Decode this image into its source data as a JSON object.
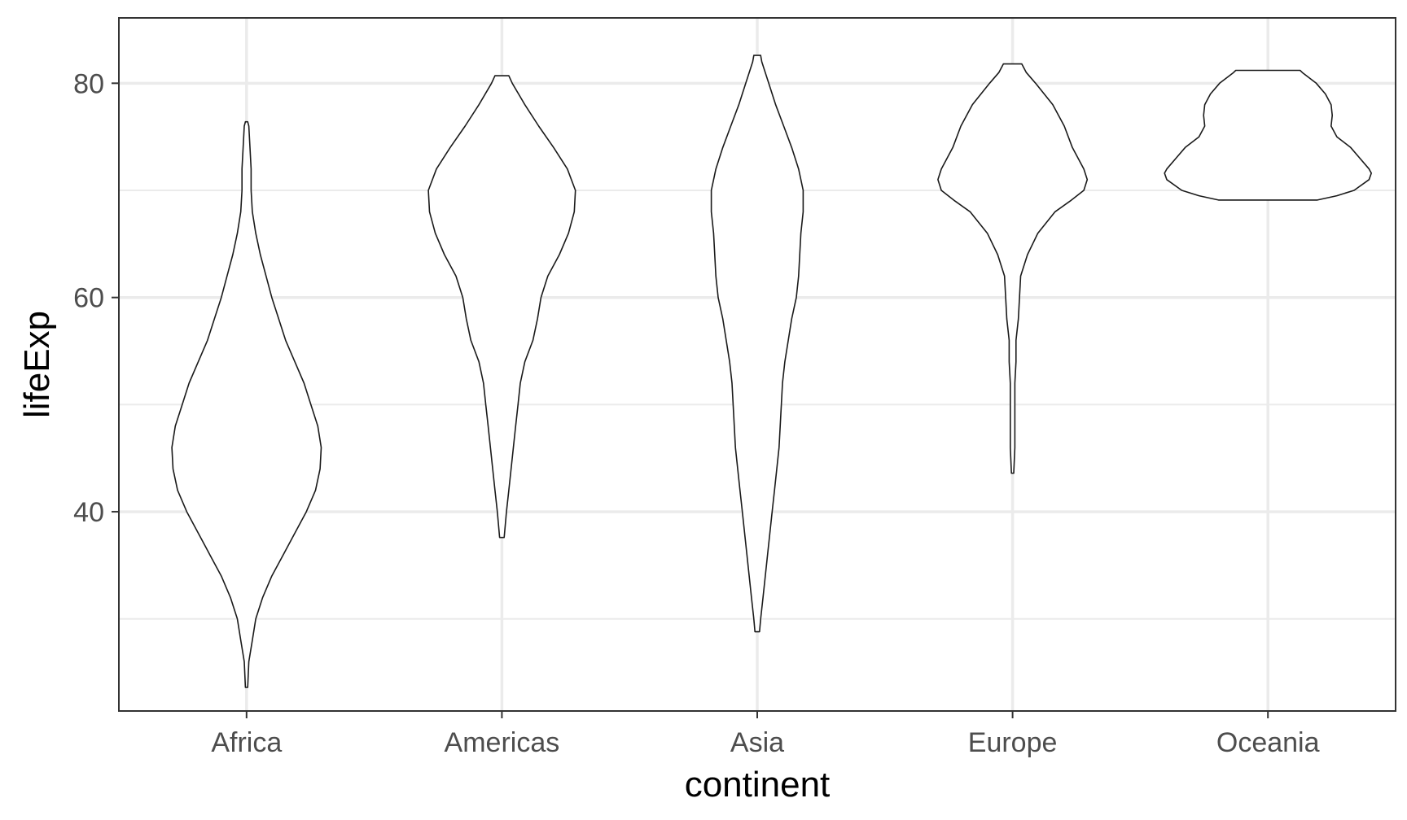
{
  "chart_data": {
    "type": "violin",
    "xlabel": "continent",
    "ylabel": "lifeExp",
    "ylim": [
      21.4,
      86.1
    ],
    "yticks": [
      40,
      60,
      80
    ],
    "y_minor_gridlines": [
      30,
      50,
      70
    ],
    "categories": [
      "Africa",
      "Americas",
      "Asia",
      "Europe",
      "Oceania"
    ],
    "grid": true,
    "colors": {
      "outline": "#1a1a1a",
      "fill": "#ffffff",
      "grid": "#ebebeb",
      "panel_border": "#333333",
      "tick_text": "#4d4d4d"
    },
    "violins": [
      {
        "category": "Africa",
        "min": 23.6,
        "max": 76.4,
        "profile": [
          [
            23.6,
            0.01
          ],
          [
            26,
            0.02
          ],
          [
            28,
            0.05
          ],
          [
            30,
            0.08
          ],
          [
            32,
            0.14
          ],
          [
            34,
            0.22
          ],
          [
            36,
            0.32
          ],
          [
            38,
            0.42
          ],
          [
            40,
            0.52
          ],
          [
            42,
            0.6
          ],
          [
            44,
            0.64
          ],
          [
            46,
            0.65
          ],
          [
            48,
            0.62
          ],
          [
            50,
            0.56
          ],
          [
            52,
            0.5
          ],
          [
            54,
            0.42
          ],
          [
            56,
            0.34
          ],
          [
            58,
            0.28
          ],
          [
            60,
            0.22
          ],
          [
            62,
            0.17
          ],
          [
            64,
            0.12
          ],
          [
            66,
            0.08
          ],
          [
            68,
            0.05
          ],
          [
            70,
            0.04
          ],
          [
            72,
            0.04
          ],
          [
            74,
            0.03
          ],
          [
            76,
            0.02
          ],
          [
            76.4,
            0.01
          ]
        ]
      },
      {
        "category": "Americas",
        "min": 37.6,
        "max": 80.7,
        "profile": [
          [
            37.6,
            0.02
          ],
          [
            40,
            0.04
          ],
          [
            42,
            0.06
          ],
          [
            44,
            0.08
          ],
          [
            46,
            0.1
          ],
          [
            48,
            0.12
          ],
          [
            50,
            0.14
          ],
          [
            52,
            0.16
          ],
          [
            54,
            0.2
          ],
          [
            56,
            0.27
          ],
          [
            58,
            0.31
          ],
          [
            60,
            0.34
          ],
          [
            62,
            0.4
          ],
          [
            64,
            0.5
          ],
          [
            66,
            0.58
          ],
          [
            68,
            0.63
          ],
          [
            70,
            0.64
          ],
          [
            72,
            0.57
          ],
          [
            74,
            0.45
          ],
          [
            76,
            0.32
          ],
          [
            78,
            0.2
          ],
          [
            80,
            0.09
          ],
          [
            80.7,
            0.06
          ]
        ]
      },
      {
        "category": "Asia",
        "min": 28.8,
        "max": 82.6,
        "profile": [
          [
            28.8,
            0.02
          ],
          [
            30,
            0.03
          ],
          [
            32,
            0.05
          ],
          [
            34,
            0.07
          ],
          [
            36,
            0.09
          ],
          [
            38,
            0.11
          ],
          [
            40,
            0.13
          ],
          [
            42,
            0.15
          ],
          [
            44,
            0.17
          ],
          [
            46,
            0.19
          ],
          [
            48,
            0.2
          ],
          [
            50,
            0.21
          ],
          [
            52,
            0.22
          ],
          [
            54,
            0.24
          ],
          [
            56,
            0.27
          ],
          [
            58,
            0.3
          ],
          [
            60,
            0.34
          ],
          [
            62,
            0.36
          ],
          [
            64,
            0.37
          ],
          [
            66,
            0.38
          ],
          [
            68,
            0.4
          ],
          [
            70,
            0.4
          ],
          [
            72,
            0.36
          ],
          [
            74,
            0.3
          ],
          [
            76,
            0.23
          ],
          [
            78,
            0.16
          ],
          [
            80,
            0.1
          ],
          [
            82,
            0.04
          ],
          [
            82.6,
            0.03
          ]
        ]
      },
      {
        "category": "Europe",
        "min": 43.6,
        "max": 81.8,
        "profile": [
          [
            43.6,
            0.01
          ],
          [
            46,
            0.02
          ],
          [
            48,
            0.02
          ],
          [
            50,
            0.02
          ],
          [
            52,
            0.02
          ],
          [
            54,
            0.03
          ],
          [
            56,
            0.03
          ],
          [
            58,
            0.05
          ],
          [
            60,
            0.06
          ],
          [
            62,
            0.07
          ],
          [
            64,
            0.13
          ],
          [
            66,
            0.22
          ],
          [
            68,
            0.37
          ],
          [
            69,
            0.5
          ],
          [
            70,
            0.62
          ],
          [
            71,
            0.65
          ],
          [
            72,
            0.62
          ],
          [
            74,
            0.52
          ],
          [
            76,
            0.45
          ],
          [
            78,
            0.35
          ],
          [
            80,
            0.2
          ],
          [
            81,
            0.12
          ],
          [
            81.8,
            0.08
          ]
        ]
      },
      {
        "category": "Oceania",
        "min": 69.1,
        "max": 81.2,
        "profile": [
          [
            69.1,
            0.43
          ],
          [
            69.5,
            0.6
          ],
          [
            70,
            0.75
          ],
          [
            71,
            0.88
          ],
          [
            71.6,
            0.9
          ],
          [
            72,
            0.88
          ],
          [
            73,
            0.8
          ],
          [
            74,
            0.72
          ],
          [
            75,
            0.6
          ],
          [
            76,
            0.55
          ],
          [
            77,
            0.56
          ],
          [
            78,
            0.55
          ],
          [
            79,
            0.5
          ],
          [
            80,
            0.42
          ],
          [
            81,
            0.3
          ],
          [
            81.2,
            0.28
          ]
        ]
      }
    ]
  }
}
